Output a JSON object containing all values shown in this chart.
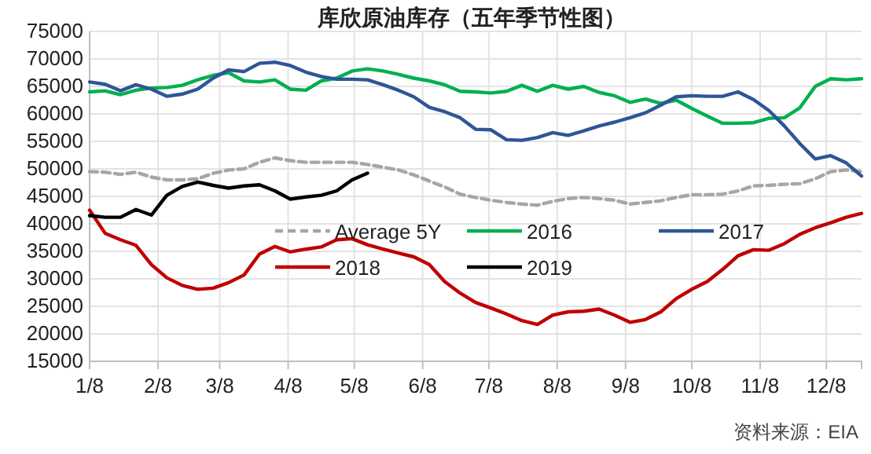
{
  "chart_data": {
    "type": "line",
    "title": "库欣原油库存（五年季节性图）",
    "x": [
      "--01-08",
      "--01-15",
      "--01-22",
      "--01-29",
      "--02-05",
      "--02-12",
      "--02-19",
      "--02-26",
      "--03-05",
      "--03-12",
      "--03-19",
      "--03-26",
      "--04-02",
      "--04-09",
      "--04-16",
      "--04-23",
      "--04-30",
      "--05-07",
      "--05-14",
      "--05-21",
      "--05-28",
      "--06-04",
      "--06-11",
      "--06-18",
      "--06-25",
      "--07-02",
      "--07-09",
      "--07-16",
      "--07-23",
      "--07-30",
      "--08-06",
      "--08-13",
      "--08-20",
      "--08-27",
      "--09-03",
      "--09-10",
      "--09-17",
      "--09-24",
      "--10-01",
      "--10-08",
      "--10-15",
      "--10-22",
      "--10-29",
      "--11-05",
      "--11-12",
      "--11-19",
      "--11-26",
      "--12-03",
      "--12-10",
      "--12-17",
      "--12-24"
    ],
    "series": [
      {
        "name": "Average 5Y",
        "color": "#a6a6a6",
        "line_style": "dashed",
        "values": [
          49500,
          49400,
          49000,
          49400,
          48500,
          48000,
          48000,
          48200,
          49200,
          49800,
          50000,
          51200,
          52000,
          51500,
          51200,
          51200,
          51200,
          51200,
          50800,
          50300,
          49800,
          48900,
          47800,
          46700,
          45400,
          44800,
          44300,
          43900,
          43600,
          43400,
          44100,
          44600,
          44800,
          44600,
          44300,
          43600,
          43900,
          44200,
          44800,
          45300,
          45300,
          45400,
          46000,
          46900,
          47000,
          47200,
          47300,
          48200,
          49500,
          49800,
          49500
        ]
      },
      {
        "name": "2016",
        "color": "#00b050",
        "values": [
          64000,
          64200,
          63500,
          64300,
          64700,
          64800,
          65200,
          66200,
          67000,
          67500,
          66000,
          65800,
          66200,
          64500,
          64300,
          66000,
          66500,
          67800,
          68200,
          67800,
          67200,
          66500,
          66000,
          65300,
          64100,
          64000,
          63800,
          64100,
          65200,
          64100,
          65200,
          64500,
          65000,
          63900,
          63300,
          62100,
          62700,
          61900,
          62500,
          61000,
          59600,
          58300,
          58300,
          58400,
          59200,
          59300,
          61100,
          65000,
          66400,
          66200,
          66400
        ]
      },
      {
        "name": "2017",
        "color": "#2f5597",
        "values": [
          65800,
          65400,
          64200,
          65300,
          64500,
          63200,
          63600,
          64500,
          66500,
          68000,
          67700,
          69200,
          69400,
          68800,
          67600,
          66800,
          66300,
          66300,
          66200,
          65300,
          64300,
          63100,
          61200,
          60400,
          59300,
          57200,
          57100,
          55300,
          55200,
          55700,
          56600,
          56100,
          56900,
          57800,
          58500,
          59300,
          60200,
          61600,
          63100,
          63300,
          63200,
          63200,
          64000,
          62600,
          60600,
          57800,
          54600,
          51800,
          52400,
          51100,
          48700
        ]
      },
      {
        "name": "2018",
        "color": "#c00000",
        "values": [
          42500,
          38300,
          37100,
          36100,
          32600,
          30200,
          28800,
          28100,
          28300,
          29300,
          30700,
          34500,
          35900,
          34900,
          35400,
          35800,
          37100,
          37300,
          36200,
          35400,
          34700,
          34000,
          32600,
          29500,
          27400,
          25700,
          24700,
          23600,
          22400,
          21700,
          23400,
          24000,
          24100,
          24500,
          23400,
          22100,
          22600,
          24000,
          26400,
          28100,
          29500,
          31700,
          34200,
          35300,
          35200,
          36400,
          38100,
          39300,
          40200,
          41200,
          41900
        ]
      },
      {
        "name": "2019",
        "color": "#000000",
        "values": [
          41500,
          41200,
          41200,
          42600,
          41600,
          45200,
          46800,
          47600,
          47000,
          46500,
          46900,
          47100,
          46000,
          44500,
          44900,
          45200,
          46000,
          48000,
          49200,
          null,
          null,
          null,
          null,
          null,
          null,
          null,
          null,
          null,
          null,
          null,
          null,
          null,
          null,
          null,
          null,
          null,
          null,
          null,
          null,
          null,
          null,
          null,
          null,
          null,
          null,
          null,
          null,
          null,
          null,
          null,
          null
        ]
      }
    ],
    "xlim": [
      "--01-08",
      "--12-24"
    ],
    "xticks": [
      {
        "value": "--01-08",
        "label": "1/8"
      },
      {
        "value": "--02-08",
        "label": "2/8"
      },
      {
        "value": "--03-08",
        "label": "3/8"
      },
      {
        "value": "--04-08",
        "label": "4/8"
      },
      {
        "value": "--05-08",
        "label": "5/8"
      },
      {
        "value": "--06-08",
        "label": "6/8"
      },
      {
        "value": "--07-08",
        "label": "7/8"
      },
      {
        "value": "--08-08",
        "label": "8/8"
      },
      {
        "value": "--09-08",
        "label": "9/8"
      },
      {
        "value": "--10-08",
        "label": "10/8"
      },
      {
        "value": "--11-08",
        "label": "11/8"
      },
      {
        "value": "--12-08",
        "label": "12/8"
      }
    ],
    "ylim": [
      15000,
      75000
    ],
    "yticks": [
      15000,
      20000,
      25000,
      30000,
      35000,
      40000,
      45000,
      50000,
      55000,
      60000,
      65000,
      70000,
      75000
    ],
    "grid": true,
    "legend": "center",
    "marker": "none",
    "annotations": [
      "资料来源：EIA"
    ]
  }
}
